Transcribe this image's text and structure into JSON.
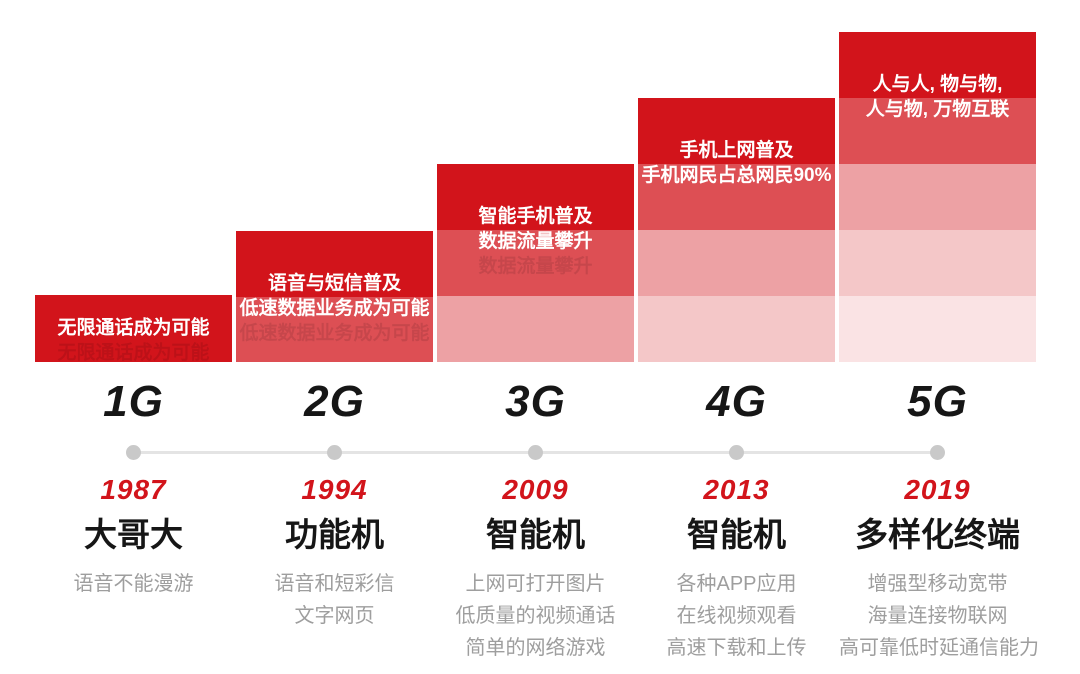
{
  "colors": {
    "red": "#d2141b",
    "band1": "#d2141b",
    "band2": "#dd4f54",
    "band3": "#eda1a4",
    "band4": "#f4c7c8",
    "band5": "#fae3e4",
    "timeline-line": "#e4e4e4",
    "timeline-dot": "#c9c9c9",
    "device-text": "#161616",
    "desc-text": "#9e9e9e",
    "caption-text": "#ffffff"
  },
  "generations": [
    {
      "label": "1G",
      "year": "1987",
      "device": "大哥大",
      "bands": 1,
      "caption_lines": [
        "无限通话成为可能"
      ],
      "desc_lines": [
        "语音不能漫游"
      ]
    },
    {
      "label": "2G",
      "year": "1994",
      "device": "功能机",
      "bands": 2,
      "caption_lines": [
        "语音与短信普及",
        "低速数据业务成为可能"
      ],
      "desc_lines": [
        "语音和短彩信",
        "文字网页"
      ]
    },
    {
      "label": "3G",
      "year": "2009",
      "device": "智能机",
      "bands": 3,
      "caption_lines": [
        "智能手机普及",
        "数据流量攀升"
      ],
      "desc_lines": [
        "上网可打开图片",
        "低质量的视频通话",
        "简单的网络游戏"
      ]
    },
    {
      "label": "4G",
      "year": "2013",
      "device": "智能机",
      "bands": 4,
      "caption_lines": [
        "手机上网普及",
        "手机网民占总网民90%"
      ],
      "desc_lines": [
        "各种APP应用",
        "在线视频观看",
        "高速下载和上传"
      ]
    },
    {
      "label": "5G",
      "year": "2019",
      "device": "多样化终端",
      "bands": 5,
      "caption_lines": [
        "人与人, 物与物,",
        "人与物, 万物互联"
      ],
      "desc_lines": [
        "增强型移动宽带",
        "海量连接物联网",
        "高可靠低时延通信能力"
      ]
    }
  ]
}
